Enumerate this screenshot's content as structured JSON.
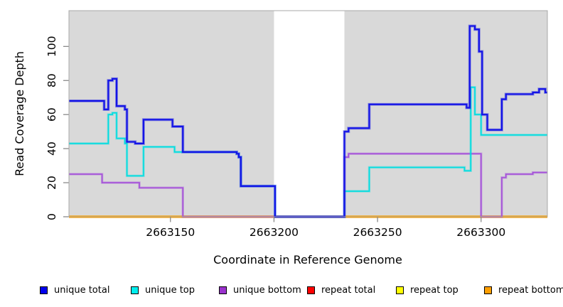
{
  "chart_data": {
    "type": "line",
    "subtype": "step-coverage-plot",
    "title": "",
    "xlabel": "Coordinate in Reference Genome",
    "ylabel": "Read Coverage Depth",
    "xlim": [
      2663101,
      2663332
    ],
    "ylim": [
      0,
      121
    ],
    "grid": false,
    "x_ticks": {
      "values": [
        2663150,
        2663200,
        2663250,
        2663300
      ],
      "labels": [
        "2663150",
        "2663200",
        "2663250",
        "2663300"
      ]
    },
    "y_ticks": {
      "values": [
        0,
        20,
        40,
        60,
        80,
        100
      ],
      "labels": [
        "0",
        "20",
        "40",
        "60",
        "80",
        "100"
      ]
    },
    "background_masks": [
      [
        2663101,
        2663200
      ],
      [
        2663234,
        2663332
      ]
    ],
    "colors": {
      "plot_background": "#D9D9D9",
      "gap_background": "#FFFFFF",
      "plot_border": "#A8A8A8",
      "tick_mark": "#808080",
      "unique_total": "#1414E6",
      "unique_top": "#00DDE0",
      "unique_bottom": "#A44FD9",
      "repeat_total": "#E60000",
      "repeat_top": "#F5F500",
      "repeat_bottom": "#FFA500"
    },
    "series": [
      {
        "name": "unique total",
        "color": "#1414E6",
        "line_width": 2.2,
        "points": [
          [
            2663101,
            68
          ],
          [
            2663118,
            63
          ],
          [
            2663120,
            80
          ],
          [
            2663122,
            81
          ],
          [
            2663124,
            65
          ],
          [
            2663128,
            63
          ],
          [
            2663129,
            44
          ],
          [
            2663133,
            43
          ],
          [
            2663137,
            57
          ],
          [
            2663151,
            53
          ],
          [
            2663156,
            38
          ],
          [
            2663182,
            37
          ],
          [
            2663183,
            35
          ],
          [
            2663184,
            18
          ],
          [
            2663200.5,
            0
          ],
          [
            2663234,
            50
          ],
          [
            2663236,
            52
          ],
          [
            2663246,
            66
          ],
          [
            2663293,
            64
          ],
          [
            2663294.5,
            112
          ],
          [
            2663297,
            110
          ],
          [
            2663299,
            97
          ],
          [
            2663300.5,
            60
          ],
          [
            2663303,
            51
          ],
          [
            2663310,
            69
          ],
          [
            2663312,
            72
          ],
          [
            2663325,
            73
          ],
          [
            2663328,
            75
          ],
          [
            2663331,
            73
          ]
        ]
      },
      {
        "name": "unique top",
        "color": "#00DDE0",
        "line_width": 1.6,
        "points": [
          [
            2663101,
            43
          ],
          [
            2663120,
            60
          ],
          [
            2663122,
            61
          ],
          [
            2663124,
            46
          ],
          [
            2663128,
            43
          ],
          [
            2663129,
            24
          ],
          [
            2663137,
            41
          ],
          [
            2663152,
            38
          ],
          [
            2663182,
            37
          ],
          [
            2663183,
            35
          ],
          [
            2663184,
            18
          ],
          [
            2663200.5,
            0
          ],
          [
            2663234,
            15
          ],
          [
            2663246,
            29
          ],
          [
            2663292,
            27
          ],
          [
            2663295,
            76
          ],
          [
            2663297,
            60
          ],
          [
            2663300,
            48
          ]
        ]
      },
      {
        "name": "unique bottom",
        "color": "#A44FD9",
        "line_width": 1.6,
        "points": [
          [
            2663101,
            25
          ],
          [
            2663117,
            20
          ],
          [
            2663135,
            17
          ],
          [
            2663156,
            0
          ],
          [
            2663234,
            35
          ],
          [
            2663236,
            37
          ],
          [
            2663300,
            0
          ],
          [
            2663310,
            23
          ],
          [
            2663312,
            25
          ],
          [
            2663325,
            26
          ]
        ]
      },
      {
        "name": "repeat total",
        "color": "#E60000",
        "line_width": 1.6,
        "points": [
          [
            2663101,
            0
          ]
        ]
      },
      {
        "name": "repeat top",
        "color": "#F5F500",
        "line_width": 1.6,
        "points": [
          [
            2663101,
            0
          ]
        ]
      },
      {
        "name": "repeat bottom",
        "color": "#FFA500",
        "line_width": 2.0,
        "points": [
          [
            2663101,
            0
          ]
        ]
      }
    ],
    "legend_position": "bottom"
  },
  "legend": {
    "items": [
      {
        "label": "unique total",
        "color": "#0000EE"
      },
      {
        "label": "unique top",
        "color": "#00EEEE"
      },
      {
        "label": "unique bottom",
        "color": "#9A32CD"
      },
      {
        "label": "repeat total",
        "color": "#FF0000"
      },
      {
        "label": "repeat top",
        "color": "#FFFF00"
      },
      {
        "label": "repeat bottom",
        "color": "#FF9F00"
      }
    ]
  }
}
